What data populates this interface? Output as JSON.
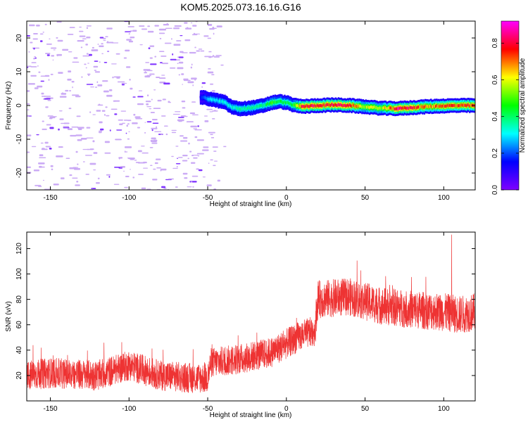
{
  "title": "KOM5.2025.073.16.16.G16",
  "chart_data": [
    {
      "type": "heatmap",
      "xlabel": "Height of straight line (km)",
      "ylabel": "Frequency (Hz)",
      "xlim": [
        -165,
        120
      ],
      "ylim": [
        -25,
        25
      ],
      "xticks": [
        -150,
        -100,
        -50,
        0,
        50,
        100
      ],
      "yticks": [
        -20,
        -10,
        0,
        10,
        20
      ],
      "grid": false,
      "colorbar": {
        "label": "Normalized spectral amplitude",
        "range": [
          0,
          0.92
        ],
        "ticks": [
          "0.0",
          "0.2",
          "0.4",
          "0.6",
          "0.8"
        ],
        "colormap": [
          "#ff00ff",
          "#ff0000",
          "#ffff00",
          "#00ff00",
          "#00ffff",
          "#0000ff",
          "#7f00ff"
        ]
      },
      "signal_trace": {
        "description": "dominant frequency ridge vs height",
        "x": [
          -55,
          -50,
          -45,
          -40,
          -35,
          -30,
          -25,
          -20,
          -15,
          -10,
          -5,
          0,
          5,
          10,
          20,
          30,
          40,
          50,
          60,
          70,
          80,
          90,
          100,
          110,
          120
        ],
        "y": [
          2.5,
          2.0,
          1.5,
          1.0,
          -0.5,
          -1.0,
          -0.8,
          -0.5,
          0.0,
          0.8,
          1.2,
          0.8,
          0.0,
          -0.3,
          0.0,
          0.2,
          0.0,
          -0.4,
          -0.8,
          -0.9,
          -0.6,
          -0.3,
          -0.1,
          0.0,
          0.0
        ],
        "amplitude": [
          0.15,
          0.3,
          0.3,
          0.35,
          0.35,
          0.4,
          0.4,
          0.4,
          0.4,
          0.5,
          0.45,
          0.45,
          0.5,
          0.85,
          0.8,
          0.85,
          0.8,
          0.6,
          0.6,
          0.85,
          0.8,
          0.7,
          0.75,
          0.8,
          0.75
        ]
      },
      "noise_region": {
        "x_range": [
          -165,
          -50
        ],
        "typical_amplitude": 0.05
      }
    },
    {
      "type": "line",
      "xlabel": "Height of straight line (km)",
      "ylabel": "SNR (v/v)",
      "xlim": [
        -165,
        120
      ],
      "ylim": [
        0,
        133
      ],
      "xticks": [
        -150,
        -100,
        -50,
        0,
        50,
        100
      ],
      "yticks": [
        20,
        40,
        60,
        80,
        100,
        120
      ],
      "grid": false,
      "series": [
        {
          "color": "#ee3333",
          "trend_x": [
            -165,
            -150,
            -120,
            -100,
            -80,
            -60,
            -50,
            -48,
            -30,
            -10,
            0,
            10,
            18,
            20,
            40,
            60,
            80,
            100,
            110,
            120
          ],
          "trend_y": [
            20,
            22,
            20,
            28,
            20,
            18,
            18,
            30,
            33,
            38,
            45,
            52,
            55,
            80,
            82,
            75,
            72,
            70,
            68,
            70
          ],
          "noise_amplitude": 12,
          "peak_y": 131,
          "min_y": 5
        }
      ]
    }
  ]
}
